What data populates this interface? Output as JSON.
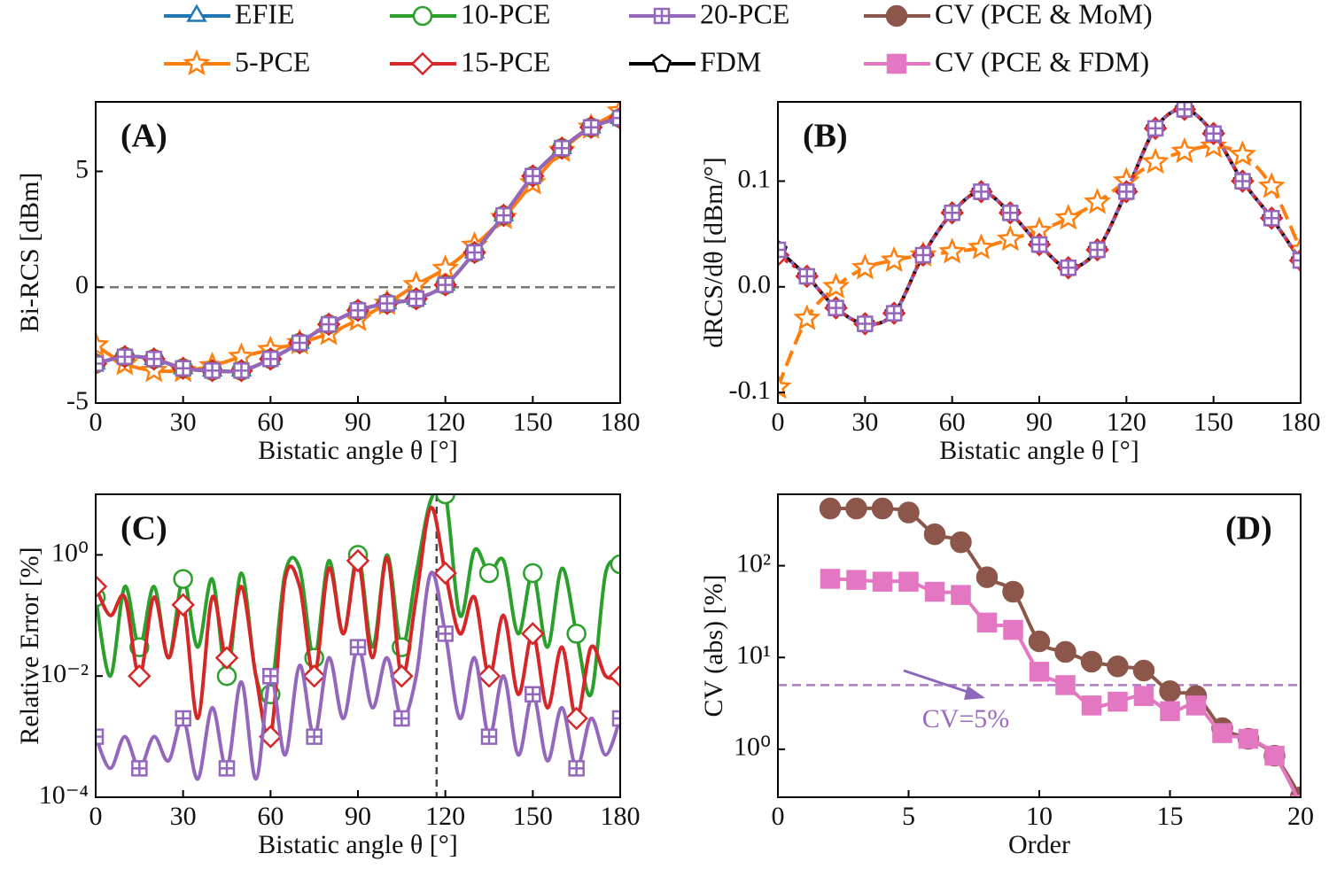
{
  "chart_data": [
    {
      "type": "line",
      "label": "(A)",
      "xlabel": "Bistatic angle θ  [°]",
      "ylabel": "Bi-RCS [dBm]",
      "xlim": [
        0,
        180
      ],
      "xticks": [
        0,
        30,
        60,
        90,
        120,
        150,
        180
      ],
      "ylim": [
        -5,
        8
      ],
      "yticks": [
        -5,
        0,
        5
      ],
      "hline": 0,
      "x": [
        0,
        10,
        20,
        30,
        40,
        50,
        60,
        70,
        80,
        90,
        100,
        110,
        120,
        130,
        140,
        150,
        160,
        170,
        180
      ],
      "series": [
        {
          "name": "EFIE",
          "color": "#1f77b4",
          "marker": "triangle",
          "values": [
            -3.3,
            -3.0,
            -3.1,
            -3.5,
            -3.6,
            -3.6,
            -3.1,
            -2.4,
            -1.6,
            -1.0,
            -0.7,
            -0.5,
            0.1,
            1.5,
            3.1,
            4.8,
            6.0,
            6.9,
            7.3
          ]
        },
        {
          "name": "5-PCE",
          "color": "#ff7f0e",
          "marker": "star",
          "values": [
            -2.5,
            -3.3,
            -3.6,
            -3.6,
            -3.4,
            -3.0,
            -2.7,
            -2.4,
            -2.0,
            -1.4,
            -0.7,
            0.1,
            0.8,
            1.8,
            3.0,
            4.5,
            5.9,
            6.9,
            7.6
          ]
        },
        {
          "name": "10-PCE",
          "color": "#2ca02c",
          "marker": "circle",
          "values": [
            -3.3,
            -3.0,
            -3.1,
            -3.5,
            -3.6,
            -3.6,
            -3.1,
            -2.4,
            -1.6,
            -1.0,
            -0.7,
            -0.5,
            0.1,
            1.5,
            3.1,
            4.8,
            6.0,
            6.9,
            7.3
          ]
        },
        {
          "name": "15-PCE",
          "color": "#d62728",
          "marker": "diamond",
          "values": [
            -3.3,
            -3.0,
            -3.1,
            -3.5,
            -3.6,
            -3.6,
            -3.1,
            -2.4,
            -1.6,
            -1.0,
            -0.7,
            -0.5,
            0.1,
            1.5,
            3.1,
            4.8,
            6.0,
            6.9,
            7.3
          ]
        },
        {
          "name": "20-PCE",
          "color": "#9467bd",
          "marker": "plussquare",
          "values": [
            -3.3,
            -3.0,
            -3.1,
            -3.5,
            -3.6,
            -3.6,
            -3.1,
            -2.4,
            -1.6,
            -1.0,
            -0.7,
            -0.5,
            0.1,
            1.5,
            3.1,
            4.8,
            6.0,
            6.9,
            7.3
          ]
        }
      ]
    },
    {
      "type": "line",
      "label": "(B)",
      "xlabel": "Bistatic angle θ [°]",
      "ylabel": "dRCS/dθ [dBm/°]",
      "xlim": [
        0,
        180
      ],
      "xticks": [
        0,
        30,
        60,
        90,
        120,
        150,
        180
      ],
      "ylim": [
        -0.11,
        0.175
      ],
      "yticks": [
        -0.1,
        {
          "value": 0,
          "label": "0.0"
        },
        0.1
      ],
      "x": [
        0,
        10,
        20,
        30,
        40,
        50,
        60,
        70,
        80,
        90,
        100,
        110,
        120,
        130,
        140,
        150,
        160,
        170,
        180
      ],
      "series": [
        {
          "name": "FDM",
          "color": "#000000",
          "marker": "pentagon",
          "values": [
            0.035,
            0.01,
            -0.02,
            -0.035,
            -0.025,
            0.03,
            0.07,
            0.09,
            0.07,
            0.04,
            0.018,
            0.035,
            0.09,
            0.15,
            0.168,
            0.145,
            0.1,
            0.065,
            0.025
          ]
        },
        {
          "name": "5-PCE",
          "color": "#ff7f0e",
          "marker": "star",
          "linestyle": "dashed",
          "values": [
            -0.095,
            -0.03,
            0.0,
            0.018,
            0.025,
            0.03,
            0.033,
            0.037,
            0.045,
            0.053,
            0.065,
            0.08,
            0.1,
            0.118,
            0.128,
            0.133,
            0.125,
            0.095,
            0.035
          ]
        },
        {
          "name": "15-PCE",
          "color": "#d62728",
          "marker": "diamond",
          "linestyle": "dotted",
          "values": [
            0.03,
            0.01,
            -0.02,
            -0.035,
            -0.025,
            0.03,
            0.07,
            0.09,
            0.07,
            0.04,
            0.018,
            0.035,
            0.09,
            0.15,
            0.168,
            0.145,
            0.1,
            0.065,
            0.025
          ]
        },
        {
          "name": "20-PCE",
          "color": "#9467bd",
          "marker": "plussquare",
          "linestyle": "dotted",
          "values": [
            0.035,
            0.01,
            -0.02,
            -0.035,
            -0.025,
            0.03,
            0.07,
            0.09,
            0.07,
            0.04,
            0.018,
            0.035,
            0.09,
            0.15,
            0.168,
            0.145,
            0.1,
            0.065,
            0.025
          ]
        }
      ]
    },
    {
      "type": "line",
      "label": "(C)",
      "xlabel": "Bistatic angle θ [°]",
      "ylabel": "Relative Error [%]",
      "ylog": true,
      "xlim": [
        0,
        180
      ],
      "xticks": [
        0,
        30,
        60,
        90,
        120,
        150,
        180
      ],
      "ylim": [
        0.0001,
        10
      ],
      "yticks": [
        {
          "value": 0.0001,
          "label": "10⁻⁴"
        },
        {
          "value": 0.01,
          "label": "10⁻²"
        },
        {
          "value": 1,
          "label": "10⁰"
        }
      ],
      "vline": 117,
      "x": [
        0,
        5,
        10,
        15,
        20,
        25,
        30,
        35,
        40,
        45,
        50,
        55,
        60,
        65,
        70,
        75,
        80,
        85,
        90,
        95,
        100,
        105,
        110,
        115,
        120,
        125,
        130,
        135,
        140,
        145,
        150,
        155,
        160,
        165,
        170,
        175,
        180
      ],
      "series": [
        {
          "name": "10-PCE",
          "color": "#2ca02c",
          "marker": "circle",
          "values": [
            0.2,
            0.01,
            0.3,
            0.03,
            0.3,
            0.02,
            0.4,
            0.03,
            0.4,
            0.01,
            0.5,
            0.01,
            0.005,
            0.5,
            0.6,
            0.02,
            0.8,
            0.05,
            1.0,
            0.03,
            1.0,
            0.03,
            0.5,
            8,
            10,
            0.1,
            1.2,
            0.5,
            0.8,
            0.05,
            0.5,
            0.03,
            0.6,
            0.05,
            0.005,
            0.5,
            0.7
          ]
        },
        {
          "name": "15-PCE",
          "color": "#d62728",
          "marker": "diamond",
          "values": [
            0.3,
            0.1,
            0.2,
            0.01,
            0.2,
            0.02,
            0.15,
            0.002,
            0.2,
            0.02,
            0.3,
            0.01,
            0.001,
            0.4,
            0.3,
            0.01,
            0.6,
            0.05,
            0.8,
            0.02,
            0.9,
            0.01,
            0.2,
            6,
            0.5,
            0.05,
            0.2,
            0.01,
            0.1,
            0.005,
            0.05,
            0.003,
            0.03,
            0.002,
            0.03,
            0.01,
            0.01
          ]
        },
        {
          "name": "20-PCE",
          "color": "#9467bd",
          "marker": "plussquare",
          "values": [
            0.001,
            0.0003,
            0.001,
            0.0003,
            0.001,
            0.0004,
            0.002,
            0.0002,
            0.003,
            0.0003,
            0.008,
            0.0002,
            0.01,
            0.0005,
            0.015,
            0.001,
            0.02,
            0.002,
            0.03,
            0.003,
            0.02,
            0.002,
            0.01,
            0.5,
            0.05,
            0.002,
            0.02,
            0.001,
            0.01,
            0.0005,
            0.005,
            0.0004,
            0.003,
            0.0003,
            0.002,
            0.0005,
            0.002
          ]
        }
      ]
    },
    {
      "type": "line",
      "label": "(D)",
      "xlabel": "Order",
      "ylabel": "CV (abs) [%]",
      "ylog": true,
      "xlim": [
        0,
        20
      ],
      "xticks": [
        0,
        5,
        10,
        15,
        20
      ],
      "ylim": [
        0.3,
        600
      ],
      "yticks": [
        {
          "value": 1,
          "label": "10⁰"
        },
        {
          "value": 10,
          "label": "10¹"
        },
        {
          "value": 100,
          "label": "10²"
        }
      ],
      "hline": 5,
      "annotation": "CV=5%",
      "x": [
        2,
        3,
        4,
        5,
        6,
        7,
        8,
        9,
        10,
        11,
        12,
        13,
        14,
        15,
        16,
        17,
        18,
        19,
        20
      ],
      "series": [
        {
          "name": "CV (PCE & MoM)",
          "color": "#8c564b",
          "marker": "filledcircle",
          "values": [
            420,
            420,
            420,
            380,
            220,
            180,
            75,
            52,
            15,
            11.5,
            9,
            8,
            7.2,
            4.3,
            3.8,
            1.7,
            1.3,
            0.85,
            0.3
          ]
        },
        {
          "name": "CV (PCE & FDM)",
          "color": "#e377c2",
          "marker": "filledsquare",
          "values": [
            72,
            70,
            67,
            67,
            52,
            48,
            24,
            20,
            7,
            5,
            3,
            3.3,
            3.8,
            2.6,
            3.0,
            1.5,
            1.3,
            0.85,
            0.25
          ]
        }
      ]
    }
  ]
}
